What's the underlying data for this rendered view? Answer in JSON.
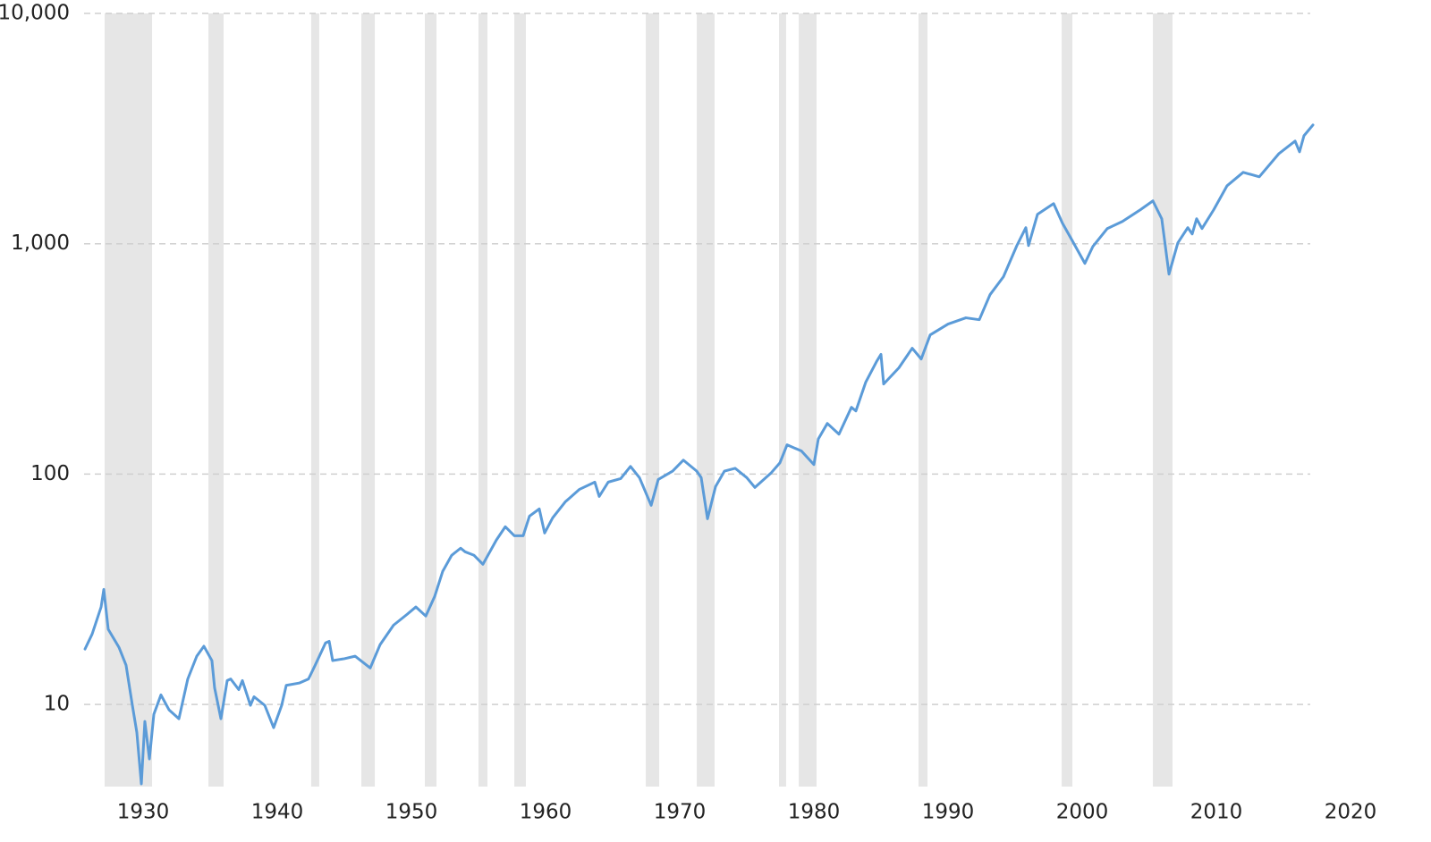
{
  "chart_data": {
    "type": "line",
    "log_y": true,
    "grid": true,
    "xlim": [
      1925.6,
      2017.2
    ],
    "ylim": [
      4.4,
      10000
    ],
    "xticks": [
      1930,
      1940,
      1950,
      1960,
      1970,
      1980,
      1990,
      2000,
      2010,
      2020
    ],
    "yticks": [
      10,
      100,
      {
        "value": 1000,
        "label": "1,000"
      },
      {
        "value": 10000,
        "label": "10,000"
      }
    ],
    "recession_color": "#e6e6e6",
    "recessions": [
      [
        1927.13,
        1930.67
      ],
      [
        1934.87,
        1936.0
      ],
      [
        1942.53,
        1943.13
      ],
      [
        1946.27,
        1947.27
      ],
      [
        1951.0,
        1951.87
      ],
      [
        1955.0,
        1955.67
      ],
      [
        1957.67,
        1958.53
      ],
      [
        1967.47,
        1968.47
      ],
      [
        1971.27,
        1972.6
      ],
      [
        1977.4,
        1977.93
      ],
      [
        1978.87,
        1980.2
      ],
      [
        1987.8,
        1988.47
      ],
      [
        1998.47,
        1999.27
      ],
      [
        2005.27,
        2006.73
      ]
    ],
    "series": [
      {
        "color": "#5b9bd8",
        "x": [
          1925.67,
          1926.2,
          1926.87,
          1927.07,
          1927.4,
          1928.2,
          1928.73,
          1929.2,
          1929.53,
          1929.87,
          1930.13,
          1930.47,
          1930.8,
          1931.33,
          1931.93,
          1932.67,
          1933.33,
          1934.0,
          1934.53,
          1935.13,
          1935.33,
          1935.8,
          1936.27,
          1936.53,
          1937.13,
          1937.4,
          1938.0,
          1938.27,
          1939.07,
          1939.73,
          1940.33,
          1940.67,
          1941.67,
          1942.33,
          1942.8,
          1943.6,
          1943.87,
          1944.13,
          1945.0,
          1945.8,
          1946.93,
          1947.67,
          1948.67,
          1949.67,
          1950.33,
          1951.07,
          1951.73,
          1952.33,
          1953.0,
          1953.67,
          1954.0,
          1954.67,
          1955.33,
          1956.33,
          1957.0,
          1957.67,
          1958.33,
          1958.8,
          1959.53,
          1959.93,
          1960.53,
          1961.47,
          1962.53,
          1963.67,
          1964.0,
          1964.67,
          1965.6,
          1966.33,
          1967.0,
          1967.87,
          1968.4,
          1969.47,
          1970.27,
          1971.27,
          1971.6,
          1972.07,
          1972.67,
          1973.33,
          1974.13,
          1975.0,
          1975.6,
          1976.8,
          1977.47,
          1978.0,
          1979.07,
          1980.0,
          1980.33,
          1981.0,
          1981.87,
          1982.8,
          1983.13,
          1983.87,
          1984.67,
          1985.0,
          1985.2,
          1986.33,
          1987.33,
          1988.0,
          1988.67,
          1990.0,
          1991.33,
          1992.33,
          1993.13,
          1994.13,
          1995.13,
          1995.8,
          1996.0,
          1996.67,
          1997.87,
          1998.53,
          1999.2,
          2000.2,
          2000.8,
          2001.87,
          2003.0,
          2004.33,
          2005.27,
          2005.93,
          2006.47,
          2007.13,
          2007.87,
          2008.2,
          2008.53,
          2008.93,
          2009.8,
          2010.8,
          2012.0,
          2013.2,
          2014.67,
          2015.87,
          2016.2,
          2016.53,
          2017.2
        ],
        "values": [
          17.4,
          20.2,
          26.5,
          31.6,
          21.2,
          17.7,
          14.8,
          9.91,
          7.58,
          4.52,
          8.44,
          5.8,
          9.06,
          11.0,
          9.48,
          8.67,
          12.9,
          16.2,
          17.9,
          15.5,
          11.8,
          8.67,
          12.7,
          12.9,
          11.6,
          12.7,
          9.91,
          10.8,
          9.91,
          7.93,
          9.91,
          12.1,
          12.4,
          12.9,
          14.7,
          18.5,
          18.8,
          15.5,
          15.8,
          16.2,
          14.4,
          18.2,
          22.1,
          24.6,
          26.5,
          24.2,
          29.4,
          37.8,
          44.4,
          47.7,
          46.0,
          44.4,
          40.6,
          51.7,
          59.1,
          54.0,
          54.0,
          65.7,
          70.6,
          55.5,
          64.6,
          75.8,
          85.9,
          92.3,
          80.0,
          92.3,
          95.6,
          108,
          96.5,
          73.2,
          94.8,
          103,
          115,
          103,
          96.5,
          64.0,
          88.3,
          103,
          106,
          96.5,
          87.5,
          101,
          112,
          134,
          126,
          110,
          142,
          166,
          149,
          195,
          188,
          251,
          308,
          331,
          246,
          289,
          352,
          316,
          402,
          448,
          477,
          468,
          601,
          719,
          982,
          1175,
          982,
          1343,
          1494,
          1228,
          1046,
          822,
          974,
          1164,
          1250,
          1404,
          1535,
          1284,
          738,
          1009,
          1175,
          1103,
          1284,
          1164,
          1404,
          1786,
          2042,
          1953,
          2464,
          2791,
          2507,
          2944,
          3278
        ]
      }
    ]
  }
}
